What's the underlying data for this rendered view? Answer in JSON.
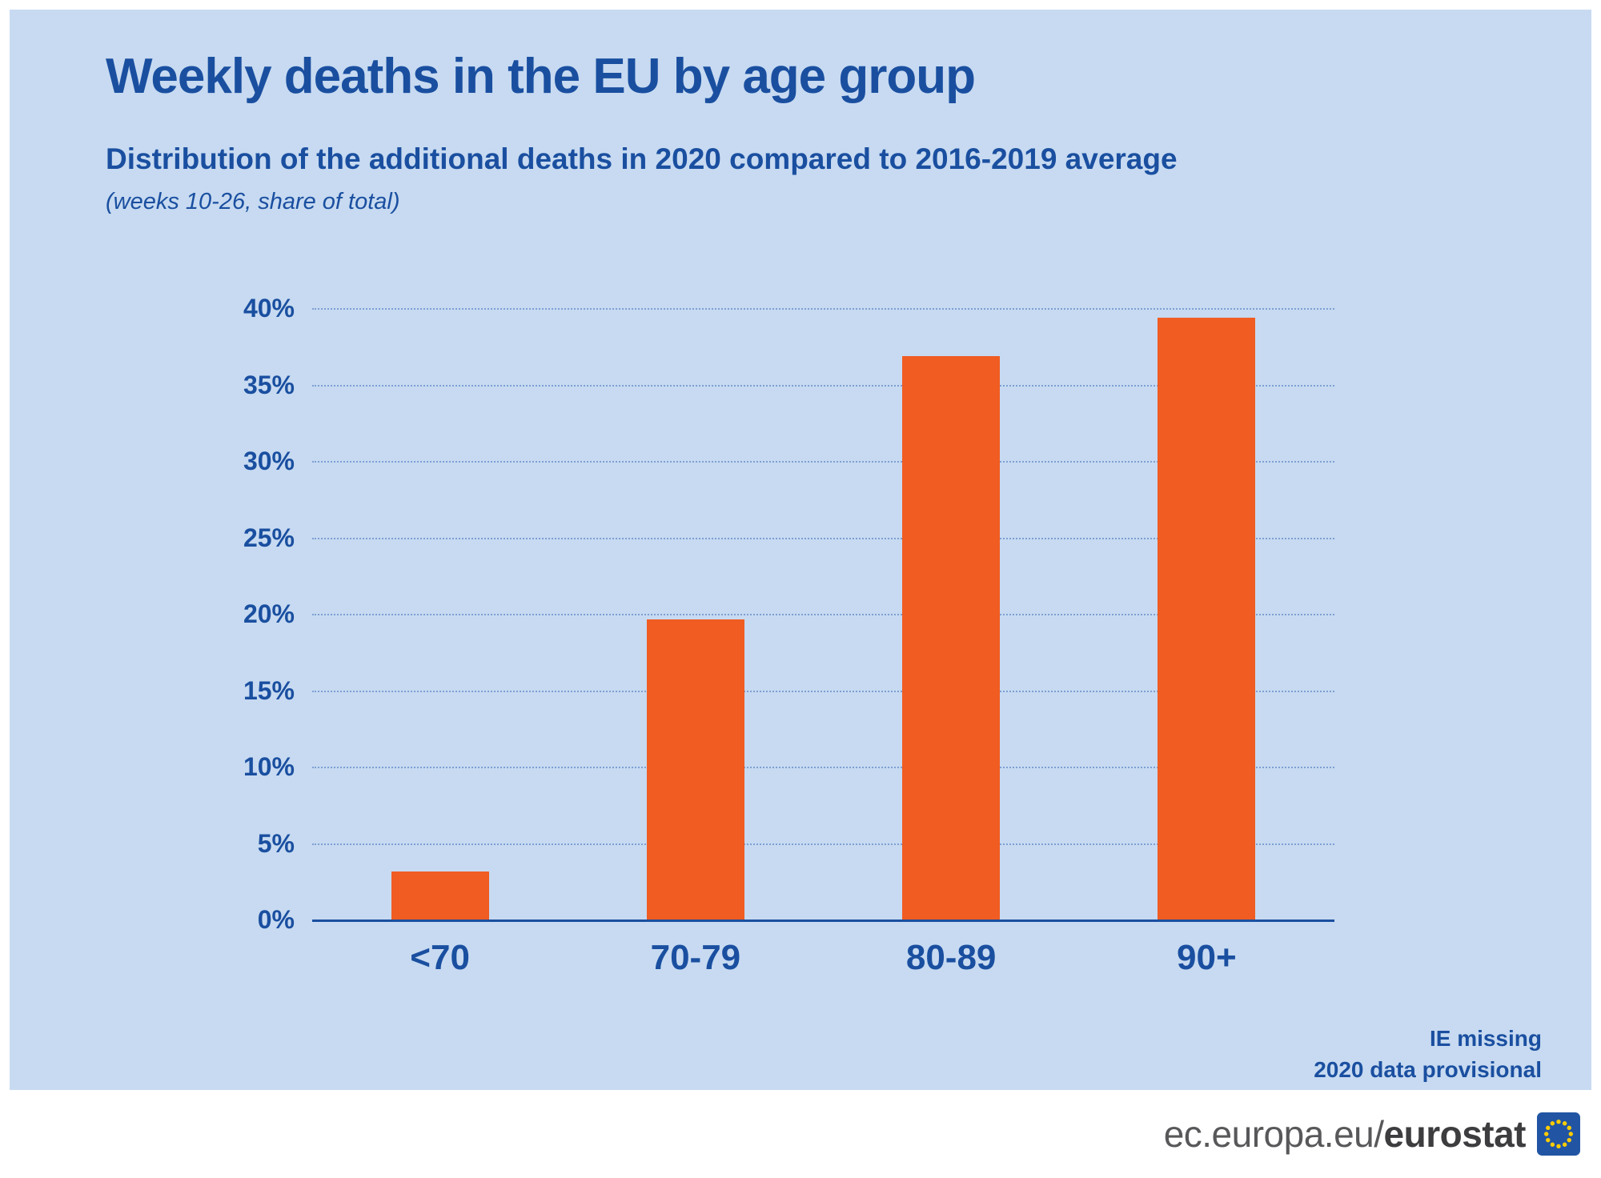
{
  "header": {
    "title": "Weekly deaths in the EU by age group",
    "subtitle": "Distribution of the additional deaths in 2020 compared to 2016-2019 average",
    "note": "(weeks 10-26, share of total)"
  },
  "chart_data": {
    "type": "bar",
    "title": "Weekly deaths in the EU by age group",
    "subtitle": "Distribution of the additional deaths in 2020 compared to 2016-2019 average (weeks 10-26, share of total)",
    "categories": [
      "<70",
      "70-79",
      "80-89",
      "90+"
    ],
    "values": [
      3.2,
      19.7,
      36.9,
      39.4
    ],
    "unit": "%",
    "xlabel": "",
    "ylabel": "",
    "ylim": [
      0,
      40
    ],
    "ytick_step": 5,
    "ytick_labels": [
      "0%",
      "5%",
      "10%",
      "15%",
      "20%",
      "25%",
      "30%",
      "35%",
      "40%"
    ],
    "grid": "horizontal-dotted",
    "legend": "none",
    "bar_color": "#f05c22"
  },
  "annotations": [
    "IE missing",
    "2020 data provisional"
  ],
  "footer": {
    "url_prefix": "ec.europa.eu/",
    "brand": "eurostat"
  },
  "colors": {
    "panel_background": "#c7daf1",
    "text_blue": "#1a4fa0",
    "bar_orange": "#f05c22",
    "gridline_blue": "#7d9fd3",
    "footer_text_gray": "#58585a",
    "eu_flag_blue": "#2155a4",
    "eu_star_yellow": "#ffcc00"
  }
}
